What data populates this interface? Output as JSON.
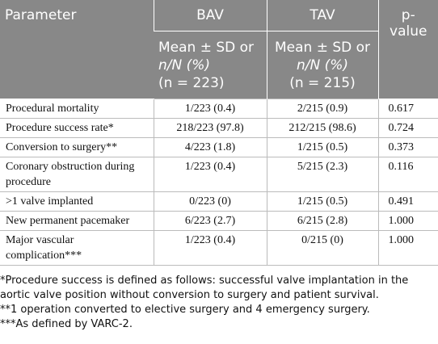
{
  "table": {
    "header": [
      "Parameter",
      "BAV",
      "TAV",
      "p-value"
    ],
    "subheader": [
      [
        "Mean ± SD or",
        "n/N (%)",
        "(n = 223)"
      ],
      [
        "Mean ± SD or",
        "n/N (%)",
        "(n = 215)"
      ]
    ],
    "rows": [
      [
        "Procedural mortality",
        "1/223 (0.4)",
        "2/215 (0.9)",
        "0.617"
      ],
      [
        "Procedure success rate*",
        "218/223 (97.8)",
        "212/215 (98.6)",
        "0.724"
      ],
      [
        "Conversion to surgery**",
        "4/223 (1.8)",
        "1/215 (0.5)",
        "0.373"
      ],
      [
        "Coronary obstruction during procedure",
        "1/223 (0.4)",
        "5/215 (2.3)",
        "0.116"
      ],
      [
        ">1 valve implanted",
        "0/223 (0)",
        "1/215 (0.5)",
        "0.491"
      ],
      [
        "New permanent pacemaker",
        "6/223 (2.7)",
        "6/215 (2.8)",
        "1.000"
      ],
      [
        "Major vascular complication***",
        "1/223 (0.4)",
        "0/215 (0)",
        "1.000"
      ]
    ]
  },
  "footnotes": [
    "*Procedure success is defined as follows: successful valve implantation in the aortic valve position without conversion to surgery and patient survival.",
    "**1 operation converted to elective surgery and 4 emergency surgery.",
    "***As defined by VARC-2."
  ]
}
